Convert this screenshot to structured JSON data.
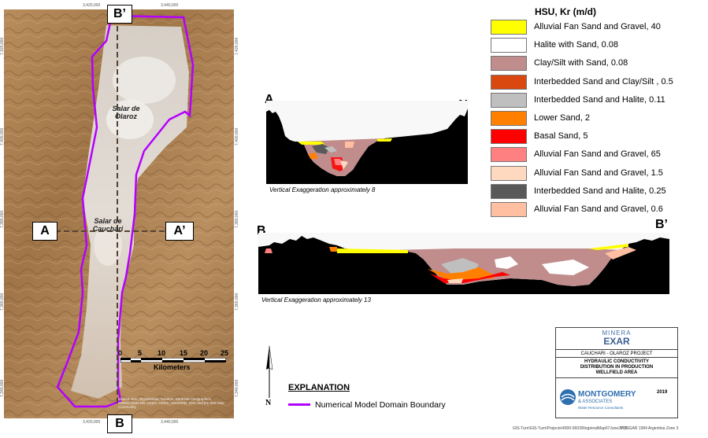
{
  "map": {
    "top_ticks": [
      "3,420,000",
      "3,440,000"
    ],
    "bottom_ticks": [
      "3,420,000",
      "3,440,000"
    ],
    "left_ticks": [
      "7,420,000",
      "7,400,000",
      "7,380,000",
      "7,360,000",
      "7,340,000"
    ],
    "right_ticks": [
      "7,420,000",
      "7,400,000",
      "7,380,000",
      "7,360,000",
      "7,340,000"
    ],
    "salar_olaroz": "Salar de\nOlaroz",
    "salar_cauchari": "Salar de\nCauchari",
    "section_a": "A",
    "section_a_prime": "A’",
    "section_b": "B",
    "section_b_prime": "B’",
    "scalebar": {
      "ticks": [
        "0",
        "5",
        "10",
        "15",
        "20",
        "25"
      ],
      "unit": "Kilometers"
    },
    "credits": "Source: Esri, DigitalGlobe, GeoEye, Earthstar Geographics, CNES/Airbus DS, USDA, USGS, AeroGRID, IGN, and the GIS User Community"
  },
  "section_aa": {
    "left": "A",
    "right": "A’",
    "caption": "Vertical Exaggeration approximately 8"
  },
  "section_bb": {
    "left": "B",
    "right": "B’",
    "caption": "Vertical Exaggeration approximately 13"
  },
  "legend": {
    "title": "HSU, Kr (m/d)",
    "items": [
      {
        "label": "Alluvial Fan Sand and Gravel, 40",
        "color": "#ffff00"
      },
      {
        "label": "Halite with Sand, 0.08",
        "color": "#ffffff"
      },
      {
        "label": "Clay/Silt with Sand, 0.08",
        "color": "#c08c8c"
      },
      {
        "label": "Interbedded Sand and Clay/Silt , 0.5",
        "color": "#d9480f"
      },
      {
        "label": "Interbedded Sand and Halite, 0.11",
        "color": "#bfbfbf"
      },
      {
        "label": "Lower Sand, 2",
        "color": "#ff8000"
      },
      {
        "label": "Basal Sand, 5",
        "color": "#ff0000"
      },
      {
        "label": "Alluvial Fan Sand and Gravel, 65",
        "color": "#ff8080"
      },
      {
        "label": "Alluvial Fan Sand and Gravel, 1.5",
        "color": "#ffd9bf"
      },
      {
        "label": "Interbedded Sand and Halite, 0.25",
        "color": "#595959"
      },
      {
        "label": "Alluvial Fan Sand and Gravel, 0.6",
        "color": "#ffbfa0"
      }
    ]
  },
  "north_arrow": "N",
  "explanation": {
    "title": "EXPLANATION",
    "boundary_label": "Numerical Model Domain Boundary",
    "boundary_color": "#b400ff"
  },
  "title_block": {
    "company_top": "MINERA",
    "company_main": "EXAR",
    "project": "CAUCHARI - OLAROZ PROJECT",
    "title_line1": "HYDRAULIC CONDUCTIVITY",
    "title_line2": "DISTRIBUTION IN PRODUCTION",
    "title_line3": "WELLFIELD AREA",
    "year": "2019",
    "consultant": "MONTGOMERY",
    "consultant_sub": "& ASSOCIATES",
    "consultant_tag": "Water Resource Consultants"
  },
  "footer": {
    "path": "GIS-Turn\\GIS-Turn\\Projects\\4000-5603\\RegionalMap07June2019",
    "projection": "POSGAR 1994 Argentina Zone 3"
  }
}
